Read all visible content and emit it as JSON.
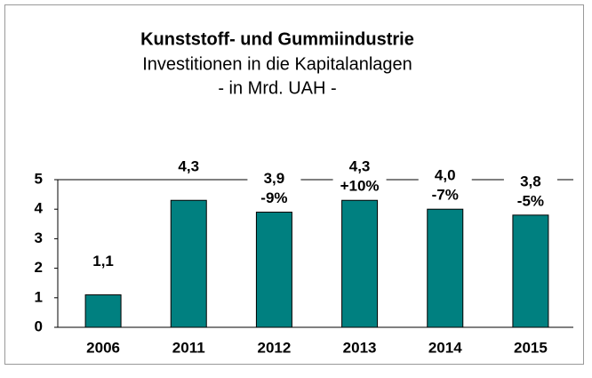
{
  "chart_data": {
    "type": "bar",
    "title": "Kunststoff- und Gummiindustrie",
    "subtitle": [
      "Investitionen in die Kapitalanlagen",
      "- in Mrd. UAH -"
    ],
    "categories": [
      "2006",
      "2011",
      "2012",
      "2013",
      "2014",
      "2015"
    ],
    "values": [
      1.1,
      4.3,
      3.9,
      4.3,
      4.0,
      3.8
    ],
    "value_labels": [
      "1,1",
      "4,3",
      "3,9",
      "4,3",
      "4,0",
      "3,8"
    ],
    "change_labels": [
      null,
      null,
      "-9%",
      "+10%",
      "-7%",
      "-5%"
    ],
    "color": "#008080",
    "ylim": [
      0,
      5
    ],
    "yticks": [
      0,
      1,
      2,
      3,
      4,
      5
    ],
    "grid": false
  }
}
